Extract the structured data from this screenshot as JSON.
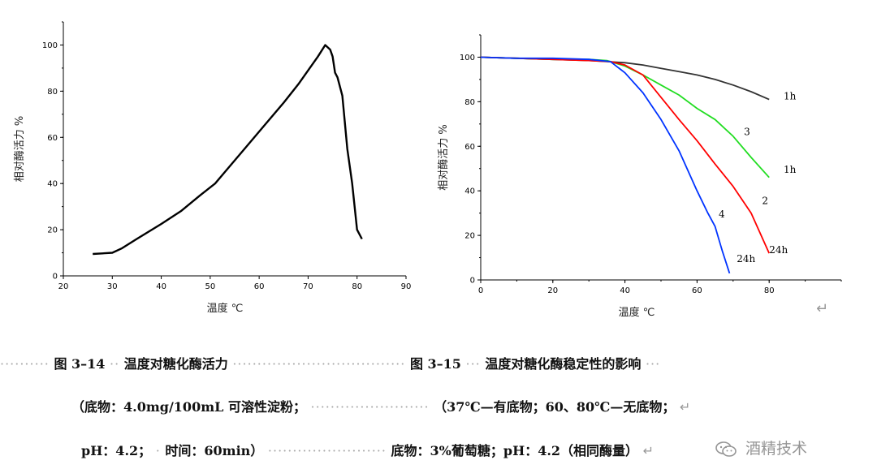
{
  "chart_data": [
    {
      "type": "line",
      "title": "",
      "xlabel": "温度 ℃",
      "ylabel": "相对酶活力 %",
      "xlim": [
        20,
        90
      ],
      "ylim": [
        0,
        110
      ],
      "xticks": [
        20,
        30,
        40,
        50,
        60,
        70,
        80,
        90
      ],
      "yticks": [
        0,
        20,
        40,
        60,
        80,
        100
      ],
      "grid": false,
      "series": [
        {
          "color": "#000000",
          "x": [
            26,
            30,
            32,
            35,
            40,
            44,
            48,
            51,
            53,
            57,
            61,
            65,
            68,
            70,
            72,
            73.5,
            74.5,
            75,
            75.5,
            76,
            77,
            78,
            79,
            80,
            81
          ],
          "y": [
            9.5,
            10,
            12,
            16,
            22.5,
            28,
            35,
            40,
            45,
            55,
            65,
            75,
            83,
            89,
            95,
            100,
            98,
            95,
            88,
            86,
            78,
            55,
            40,
            20,
            16
          ]
        }
      ]
    },
    {
      "type": "line",
      "title": "",
      "xlabel": "温度 ℃",
      "ylabel": "相对酶活力 %",
      "xlim": [
        0,
        100
      ],
      "ylim": [
        0,
        110
      ],
      "xticks": [
        0,
        20,
        40,
        60,
        80
      ],
      "yticks": [
        0,
        20,
        40,
        60,
        80,
        100
      ],
      "grid": false,
      "series": [
        {
          "name": "1h",
          "color": "#333333",
          "x": [
            0,
            10,
            20,
            30,
            35,
            40,
            45,
            50,
            55,
            60,
            65,
            70,
            75,
            80
          ],
          "y": [
            100,
            99.5,
            99,
            98.5,
            98,
            97.5,
            96.5,
            95,
            93.5,
            92,
            90,
            87.5,
            84.5,
            81
          ]
        },
        {
          "name": "1h",
          "color": "#22dd22",
          "x": [
            0,
            10,
            20,
            30,
            35,
            40,
            45,
            50,
            55,
            60,
            65,
            70,
            75,
            80
          ],
          "y": [
            100,
            99.5,
            99,
            99,
            98.5,
            96,
            92,
            87.5,
            83,
            77,
            72,
            64.5,
            55,
            46
          ]
        },
        {
          "name": "24h",
          "color": "#ff0000",
          "x": [
            0,
            10,
            20,
            30,
            36,
            40,
            45,
            50,
            55,
            60,
            65,
            70,
            75,
            80
          ],
          "y": [
            100,
            99.5,
            99,
            98.5,
            98,
            96.5,
            92,
            82,
            72,
            62.5,
            52,
            42,
            30,
            12
          ]
        },
        {
          "name": "24h",
          "color": "#0033ff",
          "x": [
            0,
            10,
            20,
            30,
            36,
            40,
            45,
            50,
            55,
            60,
            63,
            65,
            67,
            69
          ],
          "y": [
            100,
            99.5,
            99.5,
            99,
            98,
            93,
            84,
            72,
            58,
            40,
            30,
            24,
            13,
            3
          ]
        }
      ],
      "annotations": [
        {
          "text": "1h",
          "x": 84,
          "y": 81
        },
        {
          "text": "3",
          "x": 73,
          "y": 65
        },
        {
          "text": "1h",
          "x": 84,
          "y": 48
        },
        {
          "text": "2",
          "x": 78,
          "y": 34
        },
        {
          "text": "4",
          "x": 66,
          "y": 28
        },
        {
          "text": "24h",
          "x": 80,
          "y": 12
        },
        {
          "text": "24h",
          "x": 71,
          "y": 8
        }
      ]
    }
  ],
  "captions": {
    "line1_left": "图 3–14",
    "line1_left_title": "温度对糖化酶活力",
    "line1_right": "图 3–15",
    "line1_right_title": "温度对糖化酶稳定性的影响",
    "line2_left": "（底物：4.0mg/100mL 可溶性淀粉；",
    "line2_right": "（37℃—有底物；60、80℃—无底物；",
    "line3_left": "pH：4.2；",
    "line3_left_b": "时间：60min）",
    "line3_right": "底物：3%葡萄糖；pH：4.2（相同酶量）",
    "return_mark": "↵"
  },
  "watermark": {
    "text": "酒精技术",
    "icon": "wechat-icon"
  }
}
